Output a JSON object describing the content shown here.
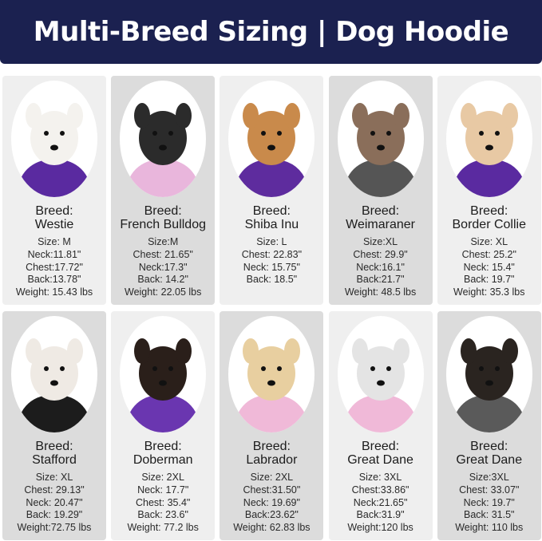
{
  "title": "Multi-Breed Sizing | Dog Hoodie",
  "breed_label": "Breed:",
  "dogs": [
    {
      "breed": "Westie",
      "specs": [
        "Size: M",
        "Neck:11.81\"",
        "Chest:17.72\"",
        "Back:13.78\"",
        "Weight: 15.43 lbs"
      ],
      "fur": "#f4f2ee",
      "hoodie": "#5a2aa0",
      "card": "light"
    },
    {
      "breed": "French Bulldog",
      "specs": [
        "Size:M",
        "Chest: 21.65\"",
        "Neck:17.3\"",
        "Back: 14.2\"",
        "Weight: 22.05 lbs"
      ],
      "fur": "#2b2b2b",
      "hoodie": "#e9b6dc",
      "card": "dark"
    },
    {
      "breed": "Shiba Inu",
      "specs": [
        "Size: L",
        "Chest: 22.83\"",
        "Neck: 15.75\"",
        "Back: 18.5\""
      ],
      "fur": "#c98a4b",
      "hoodie": "#5e2c9e",
      "card": "light"
    },
    {
      "breed": "Weimaraner",
      "specs": [
        "Size:XL",
        "Chest: 29.9\"",
        "Neck:16.1\"",
        "Back:21.7\"",
        "Weight: 48.5 lbs"
      ],
      "fur": "#8a6e5a",
      "hoodie": "#555555",
      "card": "dark"
    },
    {
      "breed": "Border Collie",
      "specs": [
        "Size: XL",
        "Chest: 25.2\"",
        "Neck: 15.4\"",
        "Back: 19.7\"",
        "Weight: 35.3 lbs"
      ],
      "fur": "#e8c9a4",
      "hoodie": "#5a2aa0",
      "card": "light"
    },
    {
      "breed": "Stafford",
      "specs": [
        "Size: XL",
        "Chest: 29.13\"",
        "Neck: 20.47\"",
        "Back: 19.29\"",
        "Weight:72.75 lbs"
      ],
      "fur": "#efeae4",
      "hoodie": "#1c1c1c",
      "card": "dark"
    },
    {
      "breed": "Doberman",
      "specs": [
        "Size: 2XL",
        "Neck: 17.7\"",
        "Chest: 35.4\"",
        "Back: 23.6\"",
        "Weight: 77.2 lbs"
      ],
      "fur": "#2a1f1a",
      "hoodie": "#6a36b0",
      "card": "light"
    },
    {
      "breed": "Labrador",
      "specs": [
        "Size: 2XL",
        "Chest:31.50\"",
        "Neck: 19.69\"",
        "Back:23.62\"",
        "Weight: 62.83 lbs"
      ],
      "fur": "#e8cfa0",
      "hoodie": "#f0b9d8",
      "card": "dark"
    },
    {
      "breed": "Great Dane",
      "specs": [
        "Size: 3XL",
        "Chest:33.86\"",
        "Neck:21.65\"",
        "Back:31.9\"",
        "Weight:120 lbs"
      ],
      "fur": "#e4e4e4",
      "hoodie": "#f0b9d8",
      "card": "light"
    },
    {
      "breed": "Great Dane",
      "specs": [
        "Size:3XL",
        "Chest: 33.07\"",
        "Neck: 19.7\"",
        "Back: 31.5\"",
        "Weight: 110 lbs"
      ],
      "fur": "#2a2420",
      "hoodie": "#5a5a5a",
      "card": "dark"
    }
  ]
}
